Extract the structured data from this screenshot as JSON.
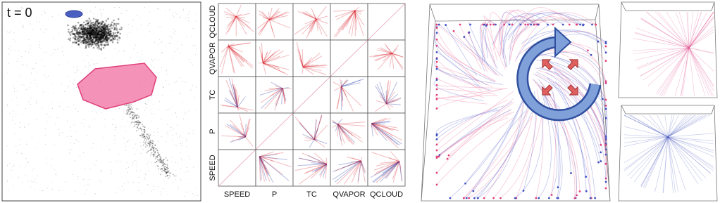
{
  "panel_a": {
    "label": "t = 0"
  },
  "matrix": {
    "row_labels": [
      "QCLOUD",
      "QVAPOR",
      "TC",
      "P",
      "SPEED"
    ],
    "column_labels": [
      "SPEED",
      "P",
      "TC",
      "QVAPOR",
      "QCLOUD"
    ]
  }
}
